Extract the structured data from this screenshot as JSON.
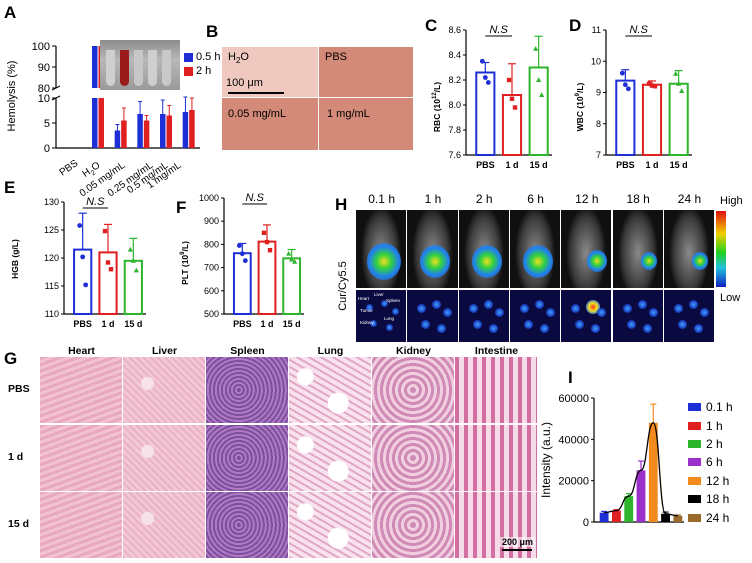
{
  "panels": {
    "A": "A",
    "B": "B",
    "C": "C",
    "D": "D",
    "E": "E",
    "F": "F",
    "G": "G",
    "H": "H",
    "I": "I"
  },
  "A": {
    "ylabel": "Hemolysis (%)",
    "upper_ticks": [
      "100",
      "90",
      "80"
    ],
    "lower_ticks": [
      "10",
      "5",
      "0"
    ],
    "legend": [
      {
        "name": "0.5 h",
        "color": "#1f2fd6"
      },
      {
        "name": "2 h",
        "color": "#e02020"
      }
    ],
    "categories": [
      {
        "line1": "PBS",
        "line2": ""
      },
      {
        "line1": "H",
        "line2": "2",
        "line3": "O"
      },
      {
        "line1": "0.05 mg/mL"
      },
      {
        "line1": "0.25 mg/mL"
      },
      {
        "line1": "0.5 mg/mL"
      },
      {
        "line1": "1 mg/mL"
      }
    ]
  },
  "B": {
    "cells": [
      "H2O",
      "PBS",
      "0.05 mg/mL",
      "1 mg/mL"
    ],
    "h2o": {
      "main": "H",
      "sub": "2",
      "tail": "O"
    },
    "scalebar": "100 μm"
  },
  "C": {
    "ylabel_main": "RBC (10",
    "ylabel_sup": "12",
    "ylabel_tail": "/L)",
    "ticks": [
      "8.6",
      "8.4",
      "8.2",
      "8.0",
      "7.8",
      "7.6"
    ],
    "ns": "N.S"
  },
  "D": {
    "ylabel_main": "WBC (10",
    "ylabel_sup": "9",
    "ylabel_tail": "/L)",
    "ticks": [
      "11",
      "10",
      "9",
      "8",
      "7"
    ],
    "ns": "N.S"
  },
  "E": {
    "ylabel": "HGB (g/L)",
    "ticks": [
      "130",
      "125",
      "120",
      "115",
      "110"
    ],
    "ns": "N.S"
  },
  "F": {
    "ylabel_main": "PLT (10",
    "ylabel_sup": "9",
    "ylabel_tail": "/L)",
    "ticks": [
      "1000",
      "900",
      "800",
      "700",
      "600",
      "500"
    ],
    "ns": "N.S"
  },
  "H": {
    "times": [
      "0.1 h",
      "1 h",
      "2 h",
      "6 h",
      "12 h",
      "18 h",
      "24 h"
    ],
    "side_label": "Cur/Cy5.5",
    "scale_high": "High",
    "scale_low": "Low",
    "organ_labels": [
      "Heart",
      "Liver",
      "Spleen",
      "Tumor",
      "Lung",
      "Kidney"
    ]
  },
  "G": {
    "columns": [
      "Heart",
      "Liver",
      "Spleen",
      "Lung",
      "Kidney",
      "Intestine"
    ],
    "rows": [
      "PBS",
      "1 d",
      "15 d"
    ],
    "scalebar": "200 μm"
  },
  "I": {
    "ylabel": "Intensity (a.u.)",
    "ticks": [
      "60000",
      "40000",
      "20000",
      "0"
    ]
  },
  "colors": {
    "blue": "#1f2fd6",
    "red": "#e02020",
    "green": "#2db52d",
    "purple": "#9b2fc9",
    "orange": "#f28a1e",
    "black": "#000000",
    "brown": "#9a6a2a"
  },
  "chart_data": [
    {
      "type": "bar",
      "panel": "A",
      "title": "",
      "ylabel": "Hemolysis (%)",
      "ylim": [
        0,
        100
      ],
      "y_break": [
        10,
        80
      ],
      "categories": [
        "PBS",
        "H2O",
        "0.05 mg/mL",
        "0.25 mg/mL",
        "0.5 mg/mL",
        "1 mg/mL"
      ],
      "series": [
        {
          "name": "0.5 h",
          "values": [
            0,
            100,
            3.5,
            6.8,
            6.8,
            7.2
          ],
          "errors": [
            0,
            0,
            1.2,
            2.5,
            2.8,
            3.0
          ]
        },
        {
          "name": "2 h",
          "values": [
            0,
            100,
            5.5,
            5.5,
            6.5,
            7.6
          ],
          "errors": [
            0,
            0,
            2.5,
            1.0,
            2.0,
            2.4
          ]
        }
      ]
    },
    {
      "type": "bar",
      "panel": "C",
      "ylabel": "RBC (10^12/L)",
      "ylim": [
        7.6,
        8.6
      ],
      "categories": [
        "PBS",
        "1 d",
        "15 d"
      ],
      "values": [
        8.26,
        8.08,
        8.3
      ],
      "errors": [
        0.08,
        0.25,
        0.25
      ],
      "points": [
        [
          8.35,
          8.22,
          8.18
        ],
        [
          8.2,
          8.05,
          7.98
        ],
        [
          8.45,
          8.2,
          8.08
        ]
      ]
    },
    {
      "type": "bar",
      "panel": "D",
      "ylabel": "WBC (10^9/L)",
      "ylim": [
        7,
        11
      ],
      "categories": [
        "PBS",
        "1 d",
        "15 d"
      ],
      "values": [
        9.38,
        9.25,
        9.28
      ],
      "errors": [
        0.35,
        0.12,
        0.42
      ],
      "points": [
        [
          9.62,
          9.25,
          9.12
        ],
        [
          9.28,
          9.22,
          9.2
        ],
        [
          9.6,
          9.28,
          9.05
        ]
      ]
    },
    {
      "type": "bar",
      "panel": "E",
      "ylabel": "HGB (g/L)",
      "ylim": [
        110,
        130
      ],
      "categories": [
        "PBS",
        "1 d",
        "15 d"
      ],
      "values": [
        121.5,
        121.0,
        119.5
      ],
      "errors": [
        6.5,
        5.0,
        4.0
      ],
      "points": [
        [
          125.8,
          120.2,
          115.2
        ],
        [
          124.8,
          119.2,
          118.0
        ],
        [
          121.5,
          119.5,
          117.8
        ]
      ]
    },
    {
      "type": "bar",
      "panel": "F",
      "ylabel": "PLT (10^9/L)",
      "ylim": [
        500,
        1000
      ],
      "categories": [
        "PBS",
        "1 d",
        "15 d"
      ],
      "values": [
        762,
        812,
        740
      ],
      "errors": [
        42,
        72,
        38
      ],
      "points": [
        [
          795,
          760,
          730
        ],
        [
          850,
          810,
          775
        ],
        [
          760,
          735,
          725
        ]
      ]
    },
    {
      "type": "bar",
      "panel": "I",
      "ylabel": "Intensity (a.u.)",
      "ylim": [
        0,
        60000
      ],
      "categories": [
        "0.1 h",
        "1 h",
        "2 h",
        "6 h",
        "12 h",
        "18 h",
        "24 h"
      ],
      "values": [
        4500,
        5500,
        12500,
        25000,
        48000,
        4000,
        3000
      ],
      "errors": [
        600,
        500,
        1200,
        4500,
        9000,
        800,
        400
      ],
      "trend_line": true
    }
  ]
}
